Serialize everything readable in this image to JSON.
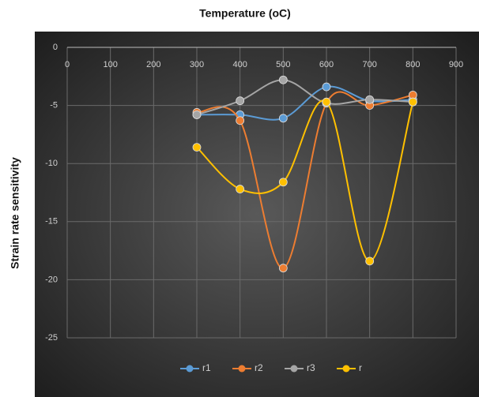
{
  "chart_data": {
    "type": "line",
    "x_label": "Temperature (oC)",
    "y_label": "Strain rate sensitivity",
    "x": [
      300,
      400,
      500,
      600,
      700,
      800
    ],
    "xlim": [
      0,
      900
    ],
    "xticks": [
      0,
      100,
      200,
      300,
      400,
      500,
      600,
      700,
      800,
      900
    ],
    "ylim": [
      -25,
      0
    ],
    "yticks": [
      0,
      -5,
      -10,
      -15,
      -20,
      -25
    ],
    "grid": true,
    "smooth": true,
    "legend": "bottom",
    "series": [
      {
        "name": "r1",
        "color": "#5b9bd5",
        "values": [
          -5.8,
          -5.8,
          -6.1,
          -3.4,
          -4.6,
          -4.5
        ]
      },
      {
        "name": "r2",
        "color": "#ed7d31",
        "values": [
          -5.6,
          -6.3,
          -19.0,
          -4.8,
          -5.0,
          -4.1
        ]
      },
      {
        "name": "r3",
        "color": "#a5a5a5",
        "values": [
          -5.8,
          -4.6,
          -2.8,
          -4.8,
          -4.5,
          -4.7
        ]
      },
      {
        "name": "r",
        "color": "#ffc000",
        "values": [
          -8.6,
          -12.2,
          -11.6,
          -4.7,
          -18.4,
          -4.7
        ]
      }
    ]
  }
}
